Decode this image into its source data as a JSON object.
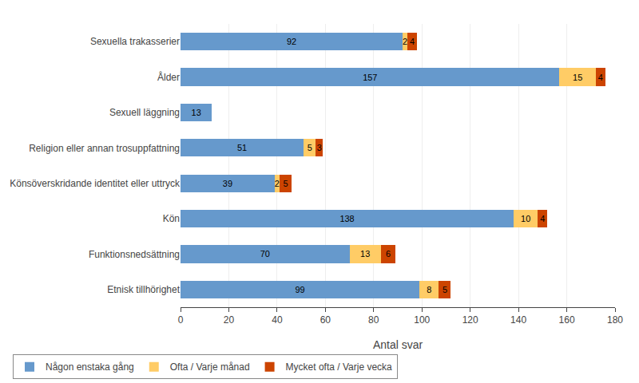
{
  "chart_data": {
    "type": "bar",
    "orientation": "horizontal",
    "stacked": true,
    "categories": [
      "Etnisk tillhörighet",
      "Funktionsnedsättning",
      "Kön",
      "Könsöverskridande identitet eller uttryck",
      "Religion eller annan trosuppfattning",
      "Sexuell läggning",
      "Ålder",
      "Sexuella trakasserier"
    ],
    "series": [
      {
        "name": "Någon enstaka gång",
        "color": "#6699CC",
        "values": [
          99,
          70,
          138,
          39,
          51,
          13,
          157,
          92
        ]
      },
      {
        "name": "Ofta / Varje månad",
        "color": "#FFCC66",
        "values": [
          8,
          13,
          10,
          2,
          5,
          0,
          15,
          2
        ]
      },
      {
        "name": "Mycket ofta / Varje vecka",
        "color": "#CC4400",
        "values": [
          5,
          6,
          4,
          5,
          3,
          0,
          4,
          4
        ]
      }
    ],
    "xlabel": "Antal svar",
    "xlim": [
      0,
      180
    ],
    "xticks": [
      0,
      20,
      40,
      60,
      80,
      100,
      120,
      140,
      160,
      180
    ],
    "grid": true,
    "legend": "lower left",
    "data_labels": true
  }
}
